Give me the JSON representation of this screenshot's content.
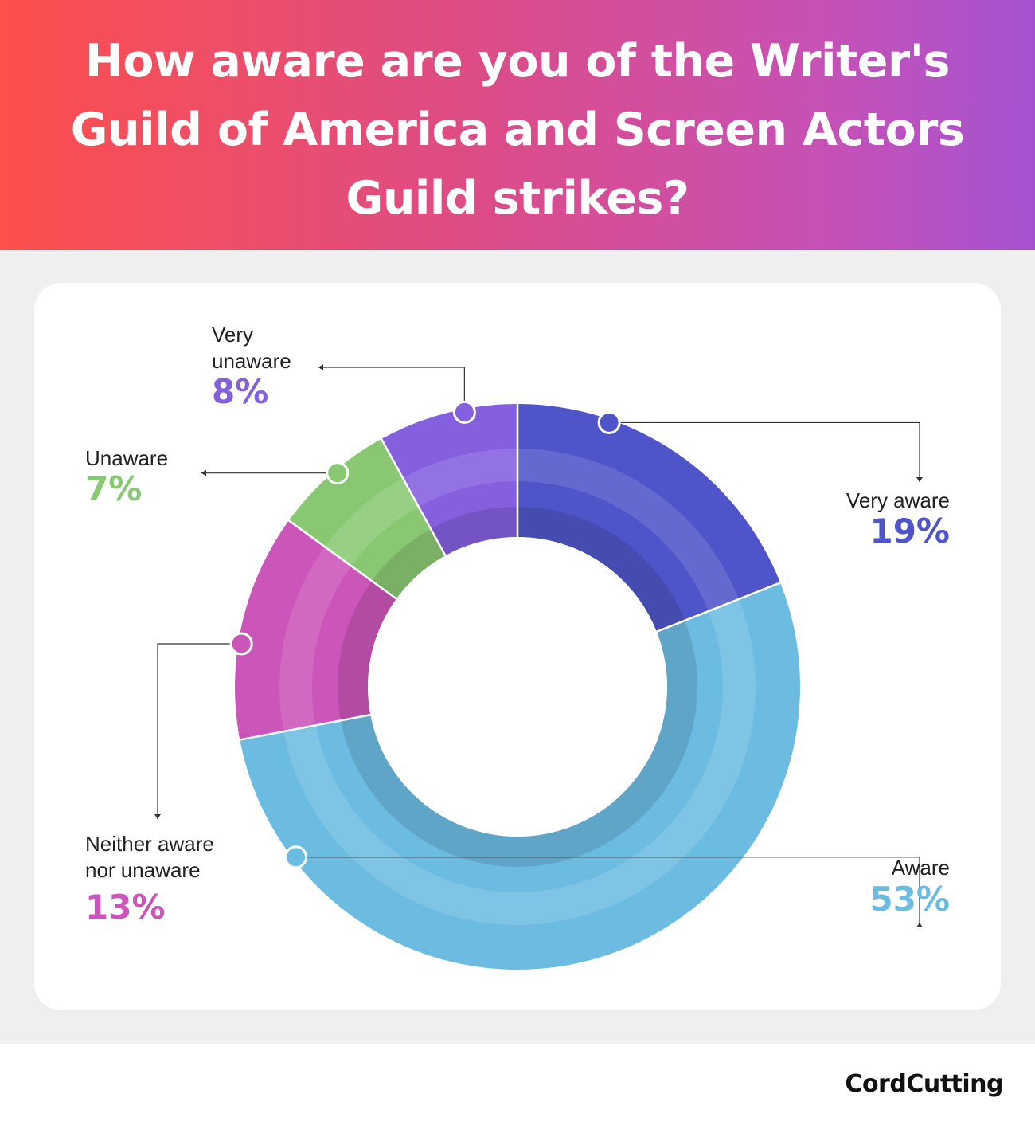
{
  "header": {
    "title": "How aware are you of the Writer's Guild of America and Screen Actors Guild strikes?"
  },
  "chart_data": {
    "type": "pie",
    "title": "How aware are you of the Writer's Guild of America and Screen Actors Guild strikes?",
    "donut": true,
    "slices": [
      {
        "name": "Very aware",
        "value": 19,
        "label": "19%",
        "color": "#4f55c8"
      },
      {
        "name": "Aware",
        "value": 53,
        "label": "53%",
        "color": "#6cbce2"
      },
      {
        "name": "Neither aware nor unaware",
        "value": 13,
        "label": "13%",
        "color": "#cb55b9"
      },
      {
        "name": "Unaware",
        "value": 7,
        "label": "7%",
        "color": "#89c873"
      },
      {
        "name": "Very unaware",
        "value": 8,
        "label": "8%",
        "color": "#8460df"
      }
    ]
  },
  "labels": {
    "very_aware": {
      "name": "Very aware",
      "pct": "19%"
    },
    "aware": {
      "name": "Aware",
      "pct": "53%"
    },
    "neither": {
      "line1": "Neither aware",
      "line2": "nor unaware",
      "pct": "13%"
    },
    "unaware": {
      "name": "Unaware",
      "pct": "7%"
    },
    "very_unaware": {
      "line1": "Very",
      "line2": "unaware",
      "pct": "8%"
    }
  },
  "colors": {
    "very_aware": "#4f55c8",
    "aware": "#6cbce2",
    "neither": "#cb55b9",
    "unaware": "#89c873",
    "very_unaware": "#8460df"
  },
  "footer": {
    "logo_text": "CordCutting",
    "logo_icon": "cord-plug-icon"
  }
}
